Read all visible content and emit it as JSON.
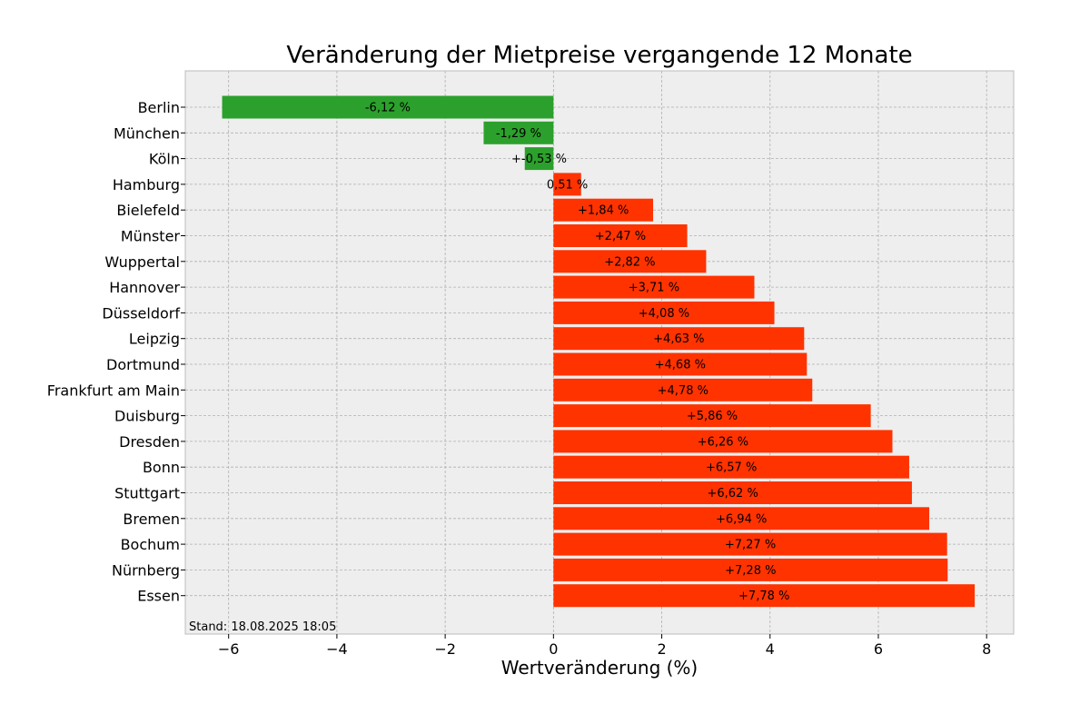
{
  "chart_data": {
    "type": "bar",
    "orientation": "horizontal",
    "title": "Veränderung der Mietpreise vergangende 12 Monate",
    "xlabel": "Wertveränderung (%)",
    "ylabel": "",
    "xlim": [
      -6.8,
      8.5
    ],
    "xticks": [
      -6,
      -4,
      -2,
      0,
      2,
      4,
      6,
      8
    ],
    "xtick_labels": [
      "−6",
      "−4",
      "−2",
      "0",
      "2",
      "4",
      "6",
      "8"
    ],
    "grid": true,
    "categories": [
      "Berlin",
      "München",
      "Köln",
      "Hamburg",
      "Bielefeld",
      "Münster",
      "Wuppertal",
      "Hannover",
      "Düsseldorf",
      "Leipzig",
      "Dortmund",
      "Frankfurt am Main",
      "Duisburg",
      "Dresden",
      "Bonn",
      "Stuttgart",
      "Bremen",
      "Bochum",
      "Nürnberg",
      "Essen"
    ],
    "values": [
      -6.12,
      -1.29,
      -0.53,
      0.51,
      1.84,
      2.47,
      2.82,
      3.71,
      4.08,
      4.63,
      4.68,
      4.78,
      5.86,
      6.26,
      6.57,
      6.62,
      6.94,
      7.27,
      7.28,
      7.78
    ],
    "data_labels": [
      "-6,12 %",
      "-1,29 %",
      "+-0,53 %",
      "0,51 %",
      "+1,84 %",
      "+2,47 %",
      "+2,82 %",
      "+3,71 %",
      "+4,08 %",
      "+4,63 %",
      "+4,68 %",
      "+4,78 %",
      "+5,86 %",
      "+6,26 %",
      "+6,57 %",
      "+6,62 %",
      "+6,94 %",
      "+7,27 %",
      "+7,28 %",
      "+7,78 %"
    ],
    "colors": {
      "negative": "#2ca02c",
      "positive": "#ff3300",
      "plot_background": "#eeeeee",
      "frame": "#bcbcbc"
    },
    "footnote": "Stand: 18.08.2025 18:05"
  }
}
